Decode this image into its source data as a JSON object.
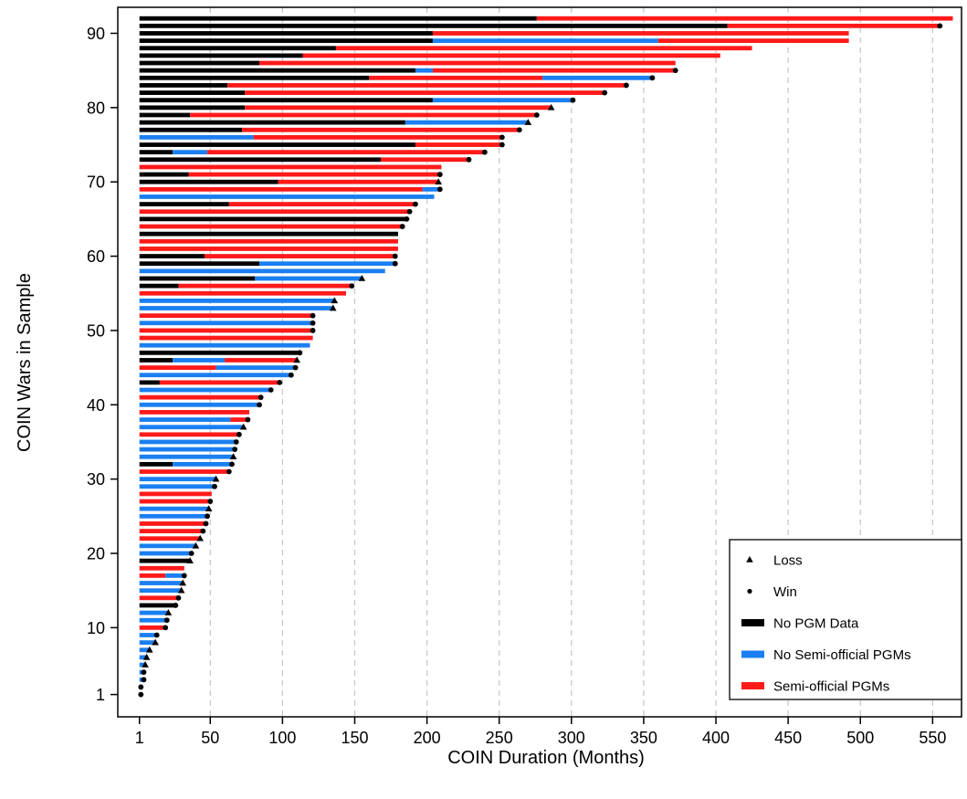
{
  "chart_data": {
    "type": "bar",
    "orientation": "horizontal",
    "title": "",
    "xlabel": "COIN Duration (Months)",
    "ylabel": "COIN Wars in Sample",
    "xlim": [
      -14,
      570
    ],
    "ylim": [
      -2,
      93.5
    ],
    "xticks": [
      1,
      50,
      100,
      150,
      200,
      250,
      300,
      350,
      400,
      450,
      500,
      550
    ],
    "yticks": [
      1,
      10,
      20,
      30,
      40,
      50,
      60,
      70,
      80,
      90
    ],
    "grid": "vertical dashed",
    "colors": {
      "no_pgm": "#000000",
      "no_semi": "#1a7ff0",
      "semi": "#ff1a1a"
    },
    "legend": {
      "position": "bottom-right",
      "entries": [
        {
          "label": "Loss",
          "marker": "triangle"
        },
        {
          "label": "Win",
          "marker": "circle"
        },
        {
          "label": "No PGM Data",
          "key": "no_pgm"
        },
        {
          "label": "No Semi-official PGMs",
          "key": "no_semi"
        },
        {
          "label": "Semi-official PGMs",
          "key": "semi"
        }
      ]
    },
    "bars": [
      {
        "y": 1,
        "segments": [
          {
            "end": 2,
            "color": "no_semi"
          }
        ],
        "outcome": "win"
      },
      {
        "y": 2,
        "segments": [
          {
            "end": 2,
            "color": "no_semi"
          }
        ],
        "outcome": "win"
      },
      {
        "y": 3,
        "segments": [
          {
            "end": 4,
            "color": "no_semi"
          }
        ],
        "outcome": "win"
      },
      {
        "y": 4,
        "segments": [
          {
            "end": 4,
            "color": "no_semi"
          }
        ],
        "outcome": "win"
      },
      {
        "y": 5,
        "segments": [
          {
            "end": 5,
            "color": "no_semi"
          }
        ],
        "outcome": "loss"
      },
      {
        "y": 6,
        "segments": [
          {
            "end": 6,
            "color": "no_semi"
          }
        ],
        "outcome": "loss"
      },
      {
        "y": 7,
        "segments": [
          {
            "end": 8,
            "color": "no_semi"
          }
        ],
        "outcome": "loss"
      },
      {
        "y": 8,
        "segments": [
          {
            "end": 12,
            "color": "no_semi"
          }
        ],
        "outcome": "loss"
      },
      {
        "y": 9,
        "segments": [
          {
            "end": 13,
            "color": "no_semi"
          }
        ],
        "outcome": "win"
      },
      {
        "y": 10,
        "segments": [
          {
            "end": 19,
            "color": "semi"
          }
        ],
        "outcome": "win"
      },
      {
        "y": 11,
        "segments": [
          {
            "end": 20,
            "color": "no_semi"
          }
        ],
        "outcome": "win"
      },
      {
        "y": 12,
        "segments": [
          {
            "end": 21,
            "color": "no_semi"
          }
        ],
        "outcome": "loss"
      },
      {
        "y": 13,
        "segments": [
          {
            "end": 26,
            "color": "no_pgm"
          }
        ],
        "outcome": "win"
      },
      {
        "y": 14,
        "segments": [
          {
            "end": 28,
            "color": "semi"
          }
        ],
        "outcome": "win"
      },
      {
        "y": 15,
        "segments": [
          {
            "end": 30,
            "color": "no_semi"
          }
        ],
        "outcome": "loss"
      },
      {
        "y": 16,
        "segments": [
          {
            "end": 31,
            "color": "no_semi"
          }
        ],
        "outcome": "loss"
      },
      {
        "y": 17,
        "segments": [
          {
            "end": 19,
            "color": "semi"
          },
          {
            "end": 32,
            "color": "no_semi"
          }
        ],
        "outcome": "win"
      },
      {
        "y": 18,
        "segments": [
          {
            "end": 32,
            "color": "semi"
          }
        ],
        "outcome": "none"
      },
      {
        "y": 19,
        "segments": [
          {
            "end": 36,
            "color": "no_pgm"
          }
        ],
        "outcome": "loss"
      },
      {
        "y": 20,
        "segments": [
          {
            "end": 37,
            "color": "no_semi"
          }
        ],
        "outcome": "win"
      },
      {
        "y": 21,
        "segments": [
          {
            "end": 40,
            "color": "no_semi"
          }
        ],
        "outcome": "loss"
      },
      {
        "y": 22,
        "segments": [
          {
            "end": 43,
            "color": "semi"
          }
        ],
        "outcome": "loss"
      },
      {
        "y": 23,
        "segments": [
          {
            "end": 45,
            "color": "semi"
          }
        ],
        "outcome": "win"
      },
      {
        "y": 24,
        "segments": [
          {
            "end": 47,
            "color": "semi"
          }
        ],
        "outcome": "win"
      },
      {
        "y": 25,
        "segments": [
          {
            "end": 48,
            "color": "no_semi"
          }
        ],
        "outcome": "win"
      },
      {
        "y": 26,
        "segments": [
          {
            "end": 49,
            "color": "no_semi"
          }
        ],
        "outcome": "loss"
      },
      {
        "y": 27,
        "segments": [
          {
            "end": 50,
            "color": "semi"
          }
        ],
        "outcome": "win"
      },
      {
        "y": 28,
        "segments": [
          {
            "end": 51,
            "color": "semi"
          }
        ],
        "outcome": "none"
      },
      {
        "y": 29,
        "segments": [
          {
            "end": 53,
            "color": "no_semi"
          }
        ],
        "outcome": "win"
      },
      {
        "y": 30,
        "segments": [
          {
            "end": 54,
            "color": "no_semi"
          }
        ],
        "outcome": "loss"
      },
      {
        "y": 31,
        "segments": [
          {
            "end": 63,
            "color": "semi"
          }
        ],
        "outcome": "win"
      },
      {
        "y": 32,
        "segments": [
          {
            "end": 24,
            "color": "no_pgm"
          },
          {
            "end": 65,
            "color": "no_semi"
          }
        ],
        "outcome": "win"
      },
      {
        "y": 33,
        "segments": [
          {
            "end": 66,
            "color": "no_semi"
          }
        ],
        "outcome": "loss"
      },
      {
        "y": 34,
        "segments": [
          {
            "end": 67,
            "color": "no_semi"
          }
        ],
        "outcome": "win"
      },
      {
        "y": 35,
        "segments": [
          {
            "end": 68,
            "color": "no_semi"
          }
        ],
        "outcome": "win"
      },
      {
        "y": 36,
        "segments": [
          {
            "end": 70,
            "color": "semi"
          }
        ],
        "outcome": "win"
      },
      {
        "y": 37,
        "segments": [
          {
            "end": 73,
            "color": "no_semi"
          }
        ],
        "outcome": "loss"
      },
      {
        "y": 38,
        "segments": [
          {
            "end": 64,
            "color": "no_semi"
          },
          {
            "end": 76,
            "color": "semi"
          }
        ],
        "outcome": "win"
      },
      {
        "y": 39,
        "segments": [
          {
            "end": 77,
            "color": "semi"
          }
        ],
        "outcome": "none"
      },
      {
        "y": 40,
        "segments": [
          {
            "end": 84,
            "color": "no_semi"
          }
        ],
        "outcome": "win"
      },
      {
        "y": 41,
        "segments": [
          {
            "end": 85,
            "color": "semi"
          }
        ],
        "outcome": "win"
      },
      {
        "y": 42,
        "segments": [
          {
            "end": 92,
            "color": "no_semi"
          }
        ],
        "outcome": "win"
      },
      {
        "y": 43,
        "segments": [
          {
            "end": 15,
            "color": "no_pgm"
          },
          {
            "end": 98,
            "color": "semi"
          }
        ],
        "outcome": "win"
      },
      {
        "y": 44,
        "segments": [
          {
            "end": 106,
            "color": "no_semi"
          }
        ],
        "outcome": "win"
      },
      {
        "y": 45,
        "segments": [
          {
            "end": 54,
            "color": "semi"
          },
          {
            "end": 109,
            "color": "no_semi"
          }
        ],
        "outcome": "win"
      },
      {
        "y": 46,
        "segments": [
          {
            "end": 24,
            "color": "no_pgm"
          },
          {
            "end": 60,
            "color": "no_semi"
          },
          {
            "end": 110,
            "color": "semi"
          }
        ],
        "outcome": "loss"
      },
      {
        "y": 47,
        "segments": [
          {
            "end": 112,
            "color": "no_pgm"
          }
        ],
        "outcome": "win"
      },
      {
        "y": 48,
        "segments": [
          {
            "end": 119,
            "color": "no_semi"
          }
        ],
        "outcome": "none"
      },
      {
        "y": 49,
        "segments": [
          {
            "end": 121,
            "color": "semi"
          }
        ],
        "outcome": "none"
      },
      {
        "y": 50,
        "segments": [
          {
            "end": 121,
            "color": "semi"
          }
        ],
        "outcome": "win"
      },
      {
        "y": 51,
        "segments": [
          {
            "end": 121,
            "color": "no_semi"
          }
        ],
        "outcome": "win"
      },
      {
        "y": 52,
        "segments": [
          {
            "end": 121,
            "color": "semi"
          }
        ],
        "outcome": "win"
      },
      {
        "y": 53,
        "segments": [
          {
            "end": 135,
            "color": "no_semi"
          }
        ],
        "outcome": "loss"
      },
      {
        "y": 54,
        "segments": [
          {
            "end": 136,
            "color": "no_semi"
          }
        ],
        "outcome": "loss"
      },
      {
        "y": 55,
        "segments": [
          {
            "end": 144,
            "color": "semi"
          }
        ],
        "outcome": "none"
      },
      {
        "y": 56,
        "segments": [
          {
            "end": 28,
            "color": "no_pgm"
          },
          {
            "end": 148,
            "color": "semi"
          }
        ],
        "outcome": "win"
      },
      {
        "y": 57,
        "segments": [
          {
            "end": 81,
            "color": "no_pgm"
          },
          {
            "end": 155,
            "color": "no_semi"
          }
        ],
        "outcome": "loss"
      },
      {
        "y": 58,
        "segments": [
          {
            "end": 171,
            "color": "no_semi"
          }
        ],
        "outcome": "none"
      },
      {
        "y": 59,
        "segments": [
          {
            "end": 84,
            "color": "no_pgm"
          },
          {
            "end": 178,
            "color": "no_semi"
          }
        ],
        "outcome": "win"
      },
      {
        "y": 60,
        "segments": [
          {
            "end": 46,
            "color": "no_pgm"
          },
          {
            "end": 178,
            "color": "semi"
          }
        ],
        "outcome": "win"
      },
      {
        "y": 61,
        "segments": [
          {
            "end": 180,
            "color": "semi"
          }
        ],
        "outcome": "none"
      },
      {
        "y": 62,
        "segments": [
          {
            "end": 180,
            "color": "semi"
          }
        ],
        "outcome": "none"
      },
      {
        "y": 63,
        "segments": [
          {
            "end": 180,
            "color": "no_pgm"
          }
        ],
        "outcome": "none"
      },
      {
        "y": 64,
        "segments": [
          {
            "end": 183,
            "color": "semi"
          }
        ],
        "outcome": "win"
      },
      {
        "y": 65,
        "segments": [
          {
            "end": 186,
            "color": "no_pgm"
          }
        ],
        "outcome": "win"
      },
      {
        "y": 66,
        "segments": [
          {
            "end": 188,
            "color": "semi"
          }
        ],
        "outcome": "win"
      },
      {
        "y": 67,
        "segments": [
          {
            "end": 63,
            "color": "no_pgm"
          },
          {
            "end": 192,
            "color": "semi"
          }
        ],
        "outcome": "win"
      },
      {
        "y": 68,
        "segments": [
          {
            "end": 205,
            "color": "no_semi"
          }
        ],
        "outcome": "none"
      },
      {
        "y": 69,
        "segments": [
          {
            "end": 197,
            "color": "semi"
          },
          {
            "end": 209,
            "color": "no_semi"
          }
        ],
        "outcome": "win"
      },
      {
        "y": 70,
        "segments": [
          {
            "end": 97,
            "color": "no_pgm"
          },
          {
            "end": 208,
            "color": "semi"
          }
        ],
        "outcome": "loss"
      },
      {
        "y": 71,
        "segments": [
          {
            "end": 35,
            "color": "no_pgm"
          },
          {
            "end": 209,
            "color": "semi"
          }
        ],
        "outcome": "win"
      },
      {
        "y": 72,
        "segments": [
          {
            "end": 210,
            "color": "semi"
          }
        ],
        "outcome": "none"
      },
      {
        "y": 73,
        "segments": [
          {
            "end": 168,
            "color": "no_pgm"
          },
          {
            "end": 229,
            "color": "semi"
          }
        ],
        "outcome": "win"
      },
      {
        "y": 74,
        "segments": [
          {
            "end": 24,
            "color": "no_pgm"
          },
          {
            "end": 48,
            "color": "no_semi"
          },
          {
            "end": 240,
            "color": "semi"
          }
        ],
        "outcome": "win"
      },
      {
        "y": 75,
        "segments": [
          {
            "end": 192,
            "color": "no_pgm"
          },
          {
            "end": 252,
            "color": "semi"
          }
        ],
        "outcome": "win"
      },
      {
        "y": 76,
        "segments": [
          {
            "end": 80,
            "color": "no_semi"
          },
          {
            "end": 252,
            "color": "semi"
          }
        ],
        "outcome": "win"
      },
      {
        "y": 77,
        "segments": [
          {
            "end": 72,
            "color": "no_pgm"
          },
          {
            "end": 264,
            "color": "semi"
          }
        ],
        "outcome": "win"
      },
      {
        "y": 78,
        "segments": [
          {
            "end": 185,
            "color": "no_pgm"
          },
          {
            "end": 270,
            "color": "no_semi"
          }
        ],
        "outcome": "loss"
      },
      {
        "y": 79,
        "segments": [
          {
            "end": 36,
            "color": "no_pgm"
          },
          {
            "end": 276,
            "color": "semi"
          }
        ],
        "outcome": "win"
      },
      {
        "y": 80,
        "segments": [
          {
            "end": 74,
            "color": "no_pgm"
          },
          {
            "end": 286,
            "color": "semi"
          }
        ],
        "outcome": "loss"
      },
      {
        "y": 81,
        "segments": [
          {
            "end": 204,
            "color": "no_pgm"
          },
          {
            "end": 301,
            "color": "no_semi"
          }
        ],
        "outcome": "win"
      },
      {
        "y": 82,
        "segments": [
          {
            "end": 74,
            "color": "no_pgm"
          },
          {
            "end": 323,
            "color": "semi"
          }
        ],
        "outcome": "win"
      },
      {
        "y": 83,
        "segments": [
          {
            "end": 62,
            "color": "no_pgm"
          },
          {
            "end": 338,
            "color": "semi"
          }
        ],
        "outcome": "win"
      },
      {
        "y": 84,
        "segments": [
          {
            "end": 160,
            "color": "no_pgm"
          },
          {
            "end": 280,
            "color": "semi"
          },
          {
            "end": 356,
            "color": "no_semi"
          }
        ],
        "outcome": "win"
      },
      {
        "y": 85,
        "segments": [
          {
            "end": 192,
            "color": "no_pgm"
          },
          {
            "end": 204,
            "color": "no_semi"
          },
          {
            "end": 372,
            "color": "semi"
          }
        ],
        "outcome": "win"
      },
      {
        "y": 86,
        "segments": [
          {
            "end": 84,
            "color": "no_pgm"
          },
          {
            "end": 372,
            "color": "semi"
          }
        ],
        "outcome": "none"
      },
      {
        "y": 87,
        "segments": [
          {
            "end": 114,
            "color": "no_pgm"
          },
          {
            "end": 403,
            "color": "semi"
          }
        ],
        "outcome": "none"
      },
      {
        "y": 88,
        "segments": [
          {
            "end": 137,
            "color": "no_pgm"
          },
          {
            "end": 425,
            "color": "semi"
          }
        ],
        "outcome": "none"
      },
      {
        "y": 89,
        "segments": [
          {
            "end": 204,
            "color": "no_pgm"
          },
          {
            "end": 360,
            "color": "no_semi"
          },
          {
            "end": 492,
            "color": "semi"
          }
        ],
        "outcome": "none"
      },
      {
        "y": 90,
        "segments": [
          {
            "end": 204,
            "color": "no_pgm"
          },
          {
            "end": 492,
            "color": "semi"
          }
        ],
        "outcome": "none"
      },
      {
        "y": 91,
        "segments": [
          {
            "end": 408,
            "color": "no_pgm"
          },
          {
            "end": 555,
            "color": "semi"
          }
        ],
        "outcome": "win"
      },
      {
        "y": 92,
        "segments": [
          {
            "end": 276,
            "color": "no_pgm"
          },
          {
            "end": 564,
            "color": "semi"
          }
        ],
        "outcome": "none"
      }
    ]
  }
}
